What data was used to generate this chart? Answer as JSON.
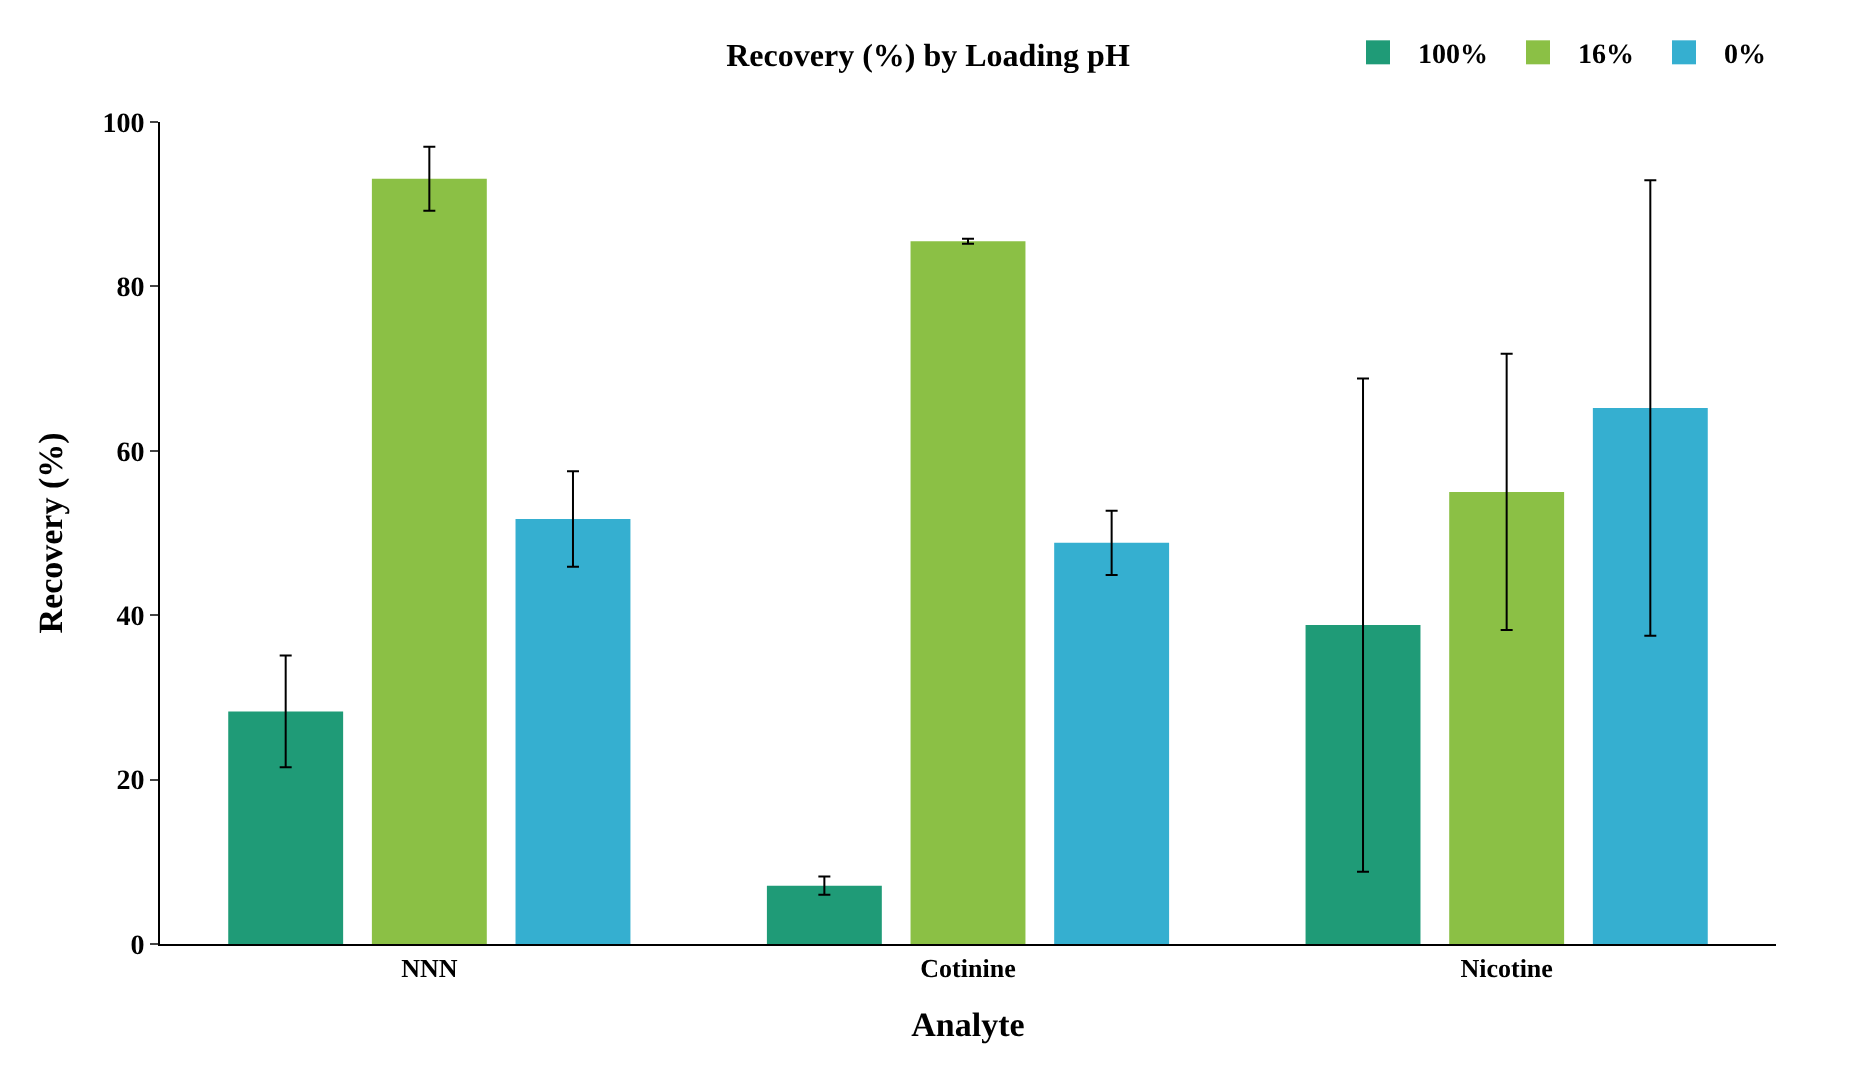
{
  "chart_data": {
    "type": "bar",
    "title": "Recovery (%) by Loading pH",
    "xlabel": "Analyte",
    "ylabel": "Recovery (%)",
    "categories": [
      "NNN",
      "Cotinine",
      "Nicotine"
    ],
    "series": [
      {
        "name": "100%",
        "color": "#1f9b77",
        "values": [
          28.3,
          7.1,
          38.8
        ],
        "errors": [
          6.8,
          1.1,
          30
        ]
      },
      {
        "name": "16%",
        "color": "#8bc045",
        "values": [
          93.1,
          85.5,
          55.0
        ],
        "errors": [
          3.9,
          0.3,
          16.8
        ]
      },
      {
        "name": "0%",
        "color": "#35afd0",
        "values": [
          51.7,
          48.8,
          65.2
        ],
        "errors": [
          5.8,
          3.9,
          27.7
        ]
      }
    ],
    "ylim": [
      0,
      100
    ],
    "yticks": [
      0,
      20,
      40,
      60,
      80,
      100
    ],
    "legend": "top right"
  }
}
